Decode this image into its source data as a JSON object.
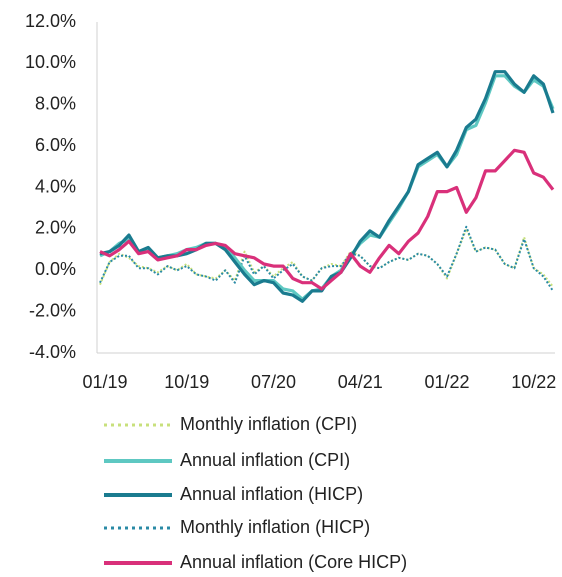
{
  "chart_data": {
    "type": "line",
    "categories": [
      "01/19",
      null,
      null,
      null,
      null,
      null,
      null,
      null,
      null,
      "10/19",
      null,
      null,
      null,
      null,
      null,
      null,
      null,
      null,
      "07/20",
      null,
      null,
      null,
      null,
      null,
      null,
      null,
      null,
      "04/21",
      null,
      null,
      null,
      null,
      null,
      null,
      null,
      null,
      "01/22",
      null,
      null,
      null,
      null,
      null,
      null,
      null,
      null,
      "10/22",
      null,
      null
    ],
    "ylim": [
      -4,
      12
    ],
    "yticks": [
      {
        "value": -4,
        "label": "-4.0%"
      },
      {
        "value": -2,
        "label": "-2.0%"
      },
      {
        "value": 0,
        "label": "0.0%"
      },
      {
        "value": 2,
        "label": "2.0%"
      },
      {
        "value": 4,
        "label": "4.0%"
      },
      {
        "value": 6,
        "label": "6.0%"
      },
      {
        "value": 8,
        "label": "8.0%"
      },
      {
        "value": 10,
        "label": "10.0%"
      },
      {
        "value": 12,
        "label": "12.0%"
      }
    ],
    "series": [
      {
        "name": "Monthly inflation (CPI)",
        "color": "#c8e07c",
        "style": "dotted",
        "values": [
          -0.7,
          0.4,
          0.8,
          0.6,
          0.2,
          0.1,
          -0.1,
          0.2,
          0.0,
          0.3,
          -0.2,
          -0.3,
          -0.4,
          0.0,
          -0.5,
          0.9,
          -0.1,
          0.2,
          -0.3,
          0.1,
          0.4,
          -0.3,
          -0.5,
          0.1,
          0.3,
          0.2,
          0.9,
          0.7,
          0.2,
          0.1,
          0.4,
          0.6,
          0.5,
          0.8,
          0.7,
          0.3,
          -0.4,
          0.8,
          2.0,
          0.9,
          1.1,
          1.0,
          0.3,
          0.1,
          1.6,
          0.1,
          -0.2,
          -0.8
        ]
      },
      {
        "name": "Annual inflation (CPI)",
        "color": "#5ec8c2",
        "style": "solid",
        "values": [
          0.7,
          0.9,
          1.3,
          1.5,
          0.9,
          1.0,
          0.6,
          0.7,
          0.8,
          1.0,
          1.1,
          1.3,
          1.3,
          1.1,
          0.6,
          0.0,
          -0.5,
          -0.5,
          -0.5,
          -0.9,
          -1.0,
          -1.4,
          -1.0,
          -0.9,
          -0.3,
          0.0,
          0.7,
          1.3,
          1.7,
          1.6,
          2.3,
          3.0,
          3.8,
          5.0,
          5.3,
          5.6,
          5.0,
          5.6,
          6.8,
          7.0,
          8.1,
          9.4,
          9.4,
          8.9,
          8.6,
          9.2,
          8.9,
          7.8
        ]
      },
      {
        "name": "Annual inflation (HICP)",
        "color": "#1a7b8f",
        "style": "solid",
        "values": [
          0.8,
          0.9,
          1.2,
          1.7,
          0.9,
          1.1,
          0.6,
          0.7,
          0.7,
          0.8,
          1.0,
          1.3,
          1.3,
          1.0,
          0.4,
          -0.2,
          -0.7,
          -0.5,
          -0.6,
          -1.1,
          -1.2,
          -1.5,
          -1.0,
          -1.0,
          -0.3,
          -0.1,
          0.6,
          1.4,
          1.9,
          1.6,
          2.4,
          3.1,
          3.8,
          5.1,
          5.4,
          5.7,
          5.0,
          5.8,
          6.9,
          7.3,
          8.3,
          9.6,
          9.6,
          9.0,
          8.6,
          9.4,
          9.0,
          7.6
        ]
      },
      {
        "name": "Monthly inflation (HICP)",
        "color": "#2a8aa5",
        "style": "dotted",
        "values": [
          -0.6,
          0.4,
          0.7,
          0.7,
          0.1,
          0.1,
          -0.2,
          0.2,
          0.0,
          0.2,
          -0.2,
          -0.3,
          -0.5,
          0.0,
          -0.6,
          0.7,
          -0.2,
          0.2,
          -0.4,
          0.0,
          0.3,
          -0.3,
          -0.5,
          0.1,
          0.2,
          0.2,
          0.8,
          0.7,
          0.2,
          0.1,
          0.4,
          0.6,
          0.5,
          0.8,
          0.7,
          0.3,
          -0.3,
          0.8,
          2.1,
          0.9,
          1.1,
          1.0,
          0.3,
          0.1,
          1.5,
          0.1,
          -0.3,
          -1.0
        ]
      },
      {
        "name": "Annual inflation  (Core HICP)",
        "color": "#d9307a",
        "style": "solid",
        "values": [
          0.9,
          0.7,
          1.0,
          1.4,
          0.8,
          0.9,
          0.5,
          0.6,
          0.7,
          1.0,
          1.0,
          1.2,
          1.3,
          1.2,
          0.8,
          0.7,
          0.6,
          0.3,
          0.2,
          0.2,
          -0.4,
          -0.6,
          -0.6,
          -0.9,
          -0.5,
          -0.1,
          0.8,
          0.2,
          -0.1,
          0.6,
          1.2,
          0.8,
          1.4,
          1.8,
          2.6,
          3.8,
          3.8,
          4.0,
          2.8,
          3.5,
          4.8,
          4.8,
          5.3,
          5.8,
          5.7,
          4.7,
          4.5,
          3.9
        ]
      }
    ]
  }
}
